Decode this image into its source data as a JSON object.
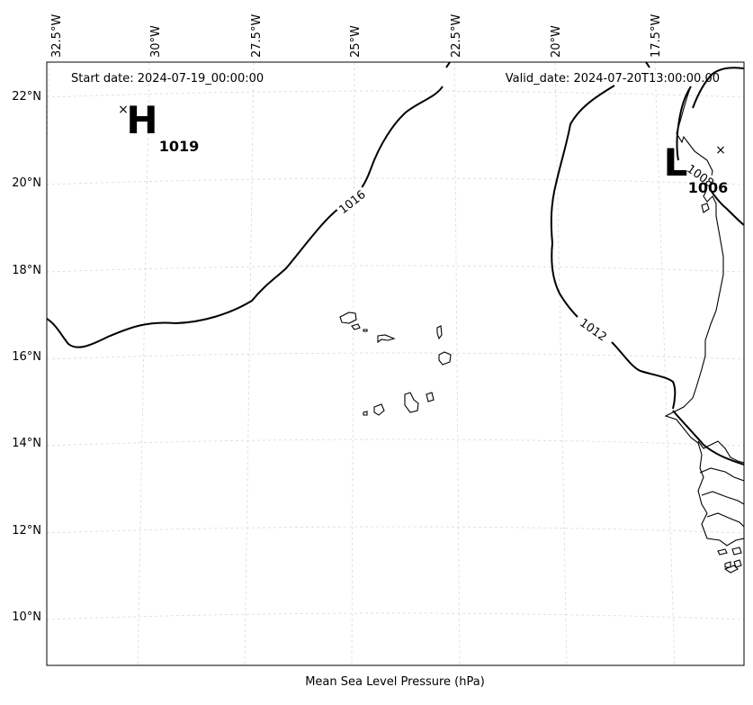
{
  "header": {
    "start_date": "Start date: 2024-07-19_00:00:00",
    "valid_date": "Valid_date: 2024-07-20T13:00:00.00"
  },
  "xlabel": "Mean Sea Level Pressure (hPa)",
  "lon_ticks": [
    "32.5°W",
    "30°W",
    "27.5°W",
    "25°W",
    "22.5°W",
    "20°W",
    "17.5°W"
  ],
  "lat_ticks": [
    "22°N",
    "20°N",
    "18°N",
    "16°N",
    "14°N",
    "12°N",
    "10°N"
  ],
  "pressure_centers": {
    "high": {
      "letter": "H",
      "value": "1019"
    },
    "low": {
      "letter": "L",
      "value": "1006"
    }
  },
  "contour_labels": [
    "1016",
    "1012",
    "1008"
  ],
  "map": {
    "variable": "Mean Sea Level Pressure",
    "units": "hPa",
    "contours_hpa": [
      1016,
      1012,
      1008
    ],
    "gridlines": true
  }
}
